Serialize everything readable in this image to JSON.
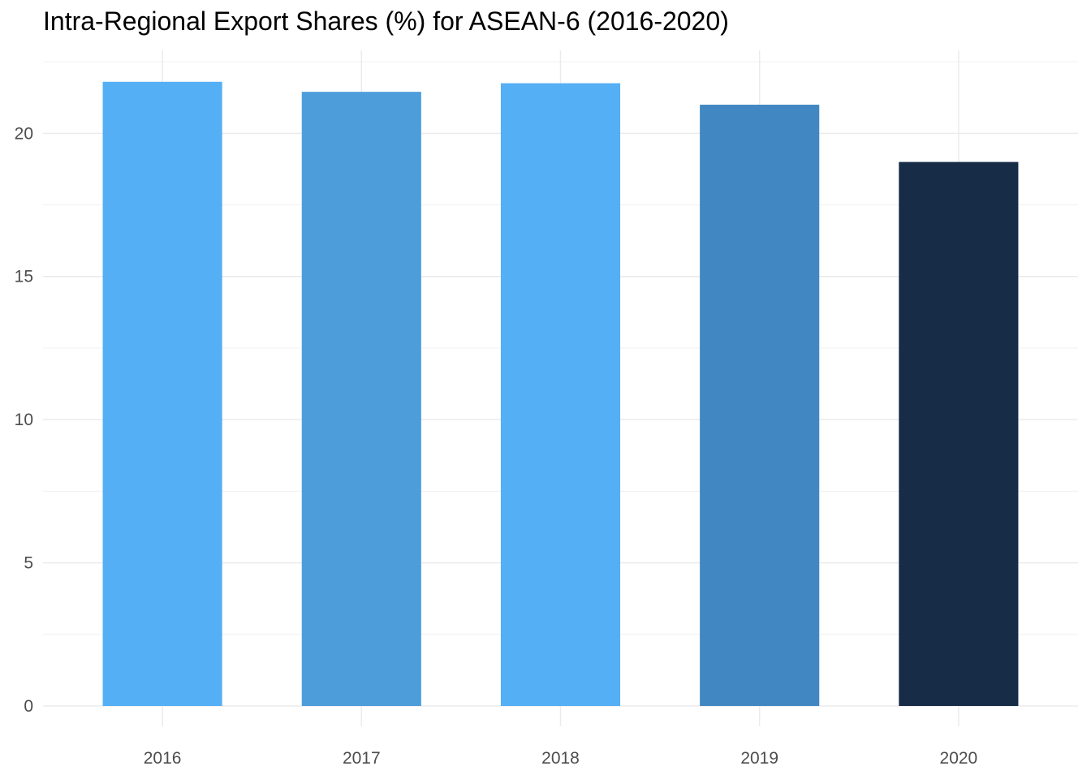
{
  "chart_data": {
    "type": "bar",
    "title": "Intra-Regional Export Shares (%) for ASEAN-6 (2016-2020)",
    "xlabel": "",
    "ylabel": "",
    "categories": [
      "2016",
      "2017",
      "2018",
      "2019",
      "2020"
    ],
    "values": [
      21.8,
      21.45,
      21.75,
      21.0,
      19.0
    ],
    "colors": [
      "#55AFF5",
      "#4D9DDB",
      "#55AFF5",
      "#4187C2",
      "#172C46"
    ],
    "ylim": [
      0,
      22.9
    ],
    "yticks": [
      0,
      5,
      10,
      15,
      20
    ],
    "ytick_labels": [
      "0",
      "5",
      "10",
      "15",
      "20"
    ],
    "grid": true,
    "legend": "none"
  }
}
